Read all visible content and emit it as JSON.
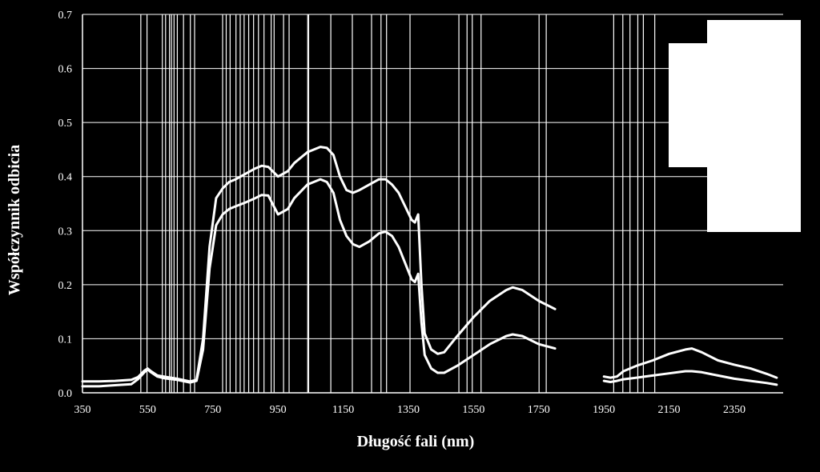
{
  "chart_data": {
    "type": "line",
    "title": "",
    "xlabel": "Długość fali (nm)",
    "ylabel": "Współczynnik odbicia",
    "xlim": [
      350,
      2500
    ],
    "ylim": [
      0,
      0.7
    ],
    "x_ticks": [
      350,
      550,
      750,
      950,
      1150,
      1350,
      1550,
      1750,
      1950,
      2150,
      2350
    ],
    "y_ticks": [
      "0.0",
      "0.1",
      "0.2",
      "0.3",
      "0.4",
      "0.5",
      "0.6",
      "0.7"
    ],
    "grid": "horizontal",
    "colors": {
      "background": "#000000",
      "line": "#ffffff",
      "grid": "#ffffff"
    },
    "band_lines": [
      529,
      548,
      595,
      605,
      617,
      623,
      631,
      641,
      660,
      681,
      694,
      780,
      791,
      803,
      821,
      834,
      846,
      860,
      875,
      890,
      907,
      929,
      938,
      967,
      984,
      1041,
      1044,
      1112,
      1178,
      1237,
      1266,
      1283,
      1355,
      1505,
      1530,
      1546,
      1573,
      1751,
      1773,
      1980,
      2008,
      2030,
      2054,
      2071,
      2106
    ],
    "series": [
      {
        "segments": [
          {
            "x": [
              350,
              400,
              450,
              500,
              520,
              540,
              550,
              560,
              580,
              600,
              640,
              680,
              700,
              720,
              740,
              760,
              780,
              800,
              820,
              850,
              880,
              900,
              920,
              950,
              980,
              1000,
              1040,
              1080,
              1100,
              1120,
              1140,
              1160,
              1180,
              1200,
              1230,
              1260,
              1280,
              1300,
              1320,
              1340,
              1360,
              1370,
              1380,
              1390,
              1400,
              1420,
              1440,
              1460,
              1500,
              1550,
              1600,
              1650,
              1670,
              1700,
              1750,
              1800
            ],
            "y": [
              0.021,
              0.021,
              0.022,
              0.024,
              0.029,
              0.041,
              0.045,
              0.04,
              0.032,
              0.03,
              0.026,
              0.021,
              0.024,
              0.1,
              0.27,
              0.36,
              0.378,
              0.39,
              0.395,
              0.405,
              0.415,
              0.42,
              0.418,
              0.4,
              0.41,
              0.425,
              0.445,
              0.455,
              0.453,
              0.44,
              0.4,
              0.375,
              0.37,
              0.375,
              0.385,
              0.395,
              0.395,
              0.385,
              0.37,
              0.345,
              0.32,
              0.315,
              0.33,
              0.2,
              0.11,
              0.08,
              0.072,
              0.075,
              0.105,
              0.14,
              0.17,
              0.19,
              0.195,
              0.19,
              0.17,
              0.155
            ]
          },
          {
            "x": [
              1950,
              1970,
              1990,
              2010,
              2050,
              2100,
              2150,
              2200,
              2220,
              2250,
              2300,
              2350,
              2400,
              2450,
              2480
            ],
            "y": [
              0.03,
              0.028,
              0.03,
              0.04,
              0.05,
              0.06,
              0.072,
              0.08,
              0.082,
              0.075,
              0.06,
              0.052,
              0.045,
              0.035,
              0.028
            ]
          }
        ]
      },
      {
        "segments": [
          {
            "x": [
              350,
              400,
              450,
              500,
              520,
              540,
              550,
              560,
              580,
              600,
              640,
              680,
              700,
              720,
              740,
              760,
              780,
              800,
              820,
              850,
              880,
              900,
              920,
              950,
              980,
              1000,
              1040,
              1080,
              1100,
              1120,
              1140,
              1160,
              1180,
              1200,
              1230,
              1260,
              1280,
              1300,
              1320,
              1340,
              1360,
              1370,
              1380,
              1390,
              1400,
              1420,
              1440,
              1460,
              1500,
              1550,
              1600,
              1650,
              1670,
              1700,
              1750,
              1800
            ],
            "y": [
              0.012,
              0.012,
              0.014,
              0.016,
              0.025,
              0.038,
              0.043,
              0.038,
              0.03,
              0.027,
              0.024,
              0.019,
              0.022,
              0.08,
              0.23,
              0.31,
              0.33,
              0.34,
              0.345,
              0.352,
              0.36,
              0.366,
              0.365,
              0.33,
              0.34,
              0.36,
              0.385,
              0.395,
              0.39,
              0.37,
              0.32,
              0.29,
              0.275,
              0.27,
              0.28,
              0.295,
              0.298,
              0.29,
              0.27,
              0.24,
              0.21,
              0.205,
              0.22,
              0.13,
              0.07,
              0.045,
              0.037,
              0.037,
              0.05,
              0.07,
              0.09,
              0.105,
              0.108,
              0.105,
              0.09,
              0.082
            ]
          },
          {
            "x": [
              1950,
              1970,
              1990,
              2010,
              2050,
              2100,
              2150,
              2200,
              2220,
              2250,
              2300,
              2350,
              2400,
              2450,
              2480
            ],
            "y": [
              0.022,
              0.02,
              0.022,
              0.025,
              0.028,
              0.032,
              0.036,
              0.04,
              0.04,
              0.038,
              0.032,
              0.026,
              0.022,
              0.018,
              0.015
            ]
          }
        ]
      }
    ],
    "legend_placement": "top-right"
  }
}
